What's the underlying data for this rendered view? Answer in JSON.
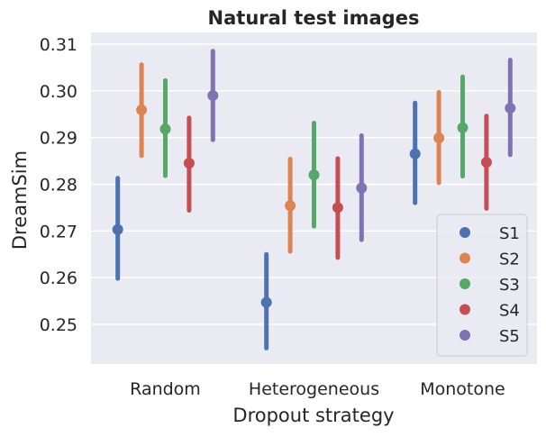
{
  "chart_data": {
    "type": "pointplot",
    "title": "Natural test images",
    "xlabel": "Dropout strategy",
    "ylabel": "DreamSim",
    "ylim": [
      0.2415,
      0.3125
    ],
    "yticks": [
      0.25,
      0.26,
      0.27,
      0.28,
      0.29,
      0.3,
      0.31
    ],
    "ytick_labels": [
      "0.25",
      "0.26",
      "0.27",
      "0.28",
      "0.29",
      "0.30",
      "0.31"
    ],
    "grid": true,
    "legend_position": "lower right",
    "categories": [
      "Random",
      "Heterogeneous",
      "Monotone"
    ],
    "series": [
      {
        "name": "S1",
        "color": "#4c72b0",
        "values": [
          0.2703,
          0.2547,
          0.2865
        ],
        "ci_low": [
          0.2598,
          0.2449,
          0.276
        ],
        "ci_high": [
          0.2813,
          0.265,
          0.2974
        ]
      },
      {
        "name": "S2",
        "color": "#dd8452",
        "values": [
          0.2959,
          0.2754,
          0.2899
        ],
        "ci_low": [
          0.2861,
          0.2656,
          0.2803
        ],
        "ci_high": [
          0.3056,
          0.2854,
          0.2997
        ]
      },
      {
        "name": "S3",
        "color": "#55a868",
        "values": [
          0.2918,
          0.282,
          0.2921
        ],
        "ci_low": [
          0.2818,
          0.271,
          0.2817
        ],
        "ci_high": [
          0.3022,
          0.2931,
          0.303
        ]
      },
      {
        "name": "S4",
        "color": "#c44e52",
        "values": [
          0.2845,
          0.275,
          0.2847
        ],
        "ci_low": [
          0.2744,
          0.2643,
          0.2748
        ],
        "ci_high": [
          0.2942,
          0.2855,
          0.2946
        ]
      },
      {
        "name": "S5",
        "color": "#8172b3",
        "values": [
          0.299,
          0.2792,
          0.2963
        ],
        "ci_low": [
          0.2895,
          0.2681,
          0.2863
        ],
        "ci_high": [
          0.3085,
          0.2904,
          0.3066
        ]
      }
    ]
  }
}
